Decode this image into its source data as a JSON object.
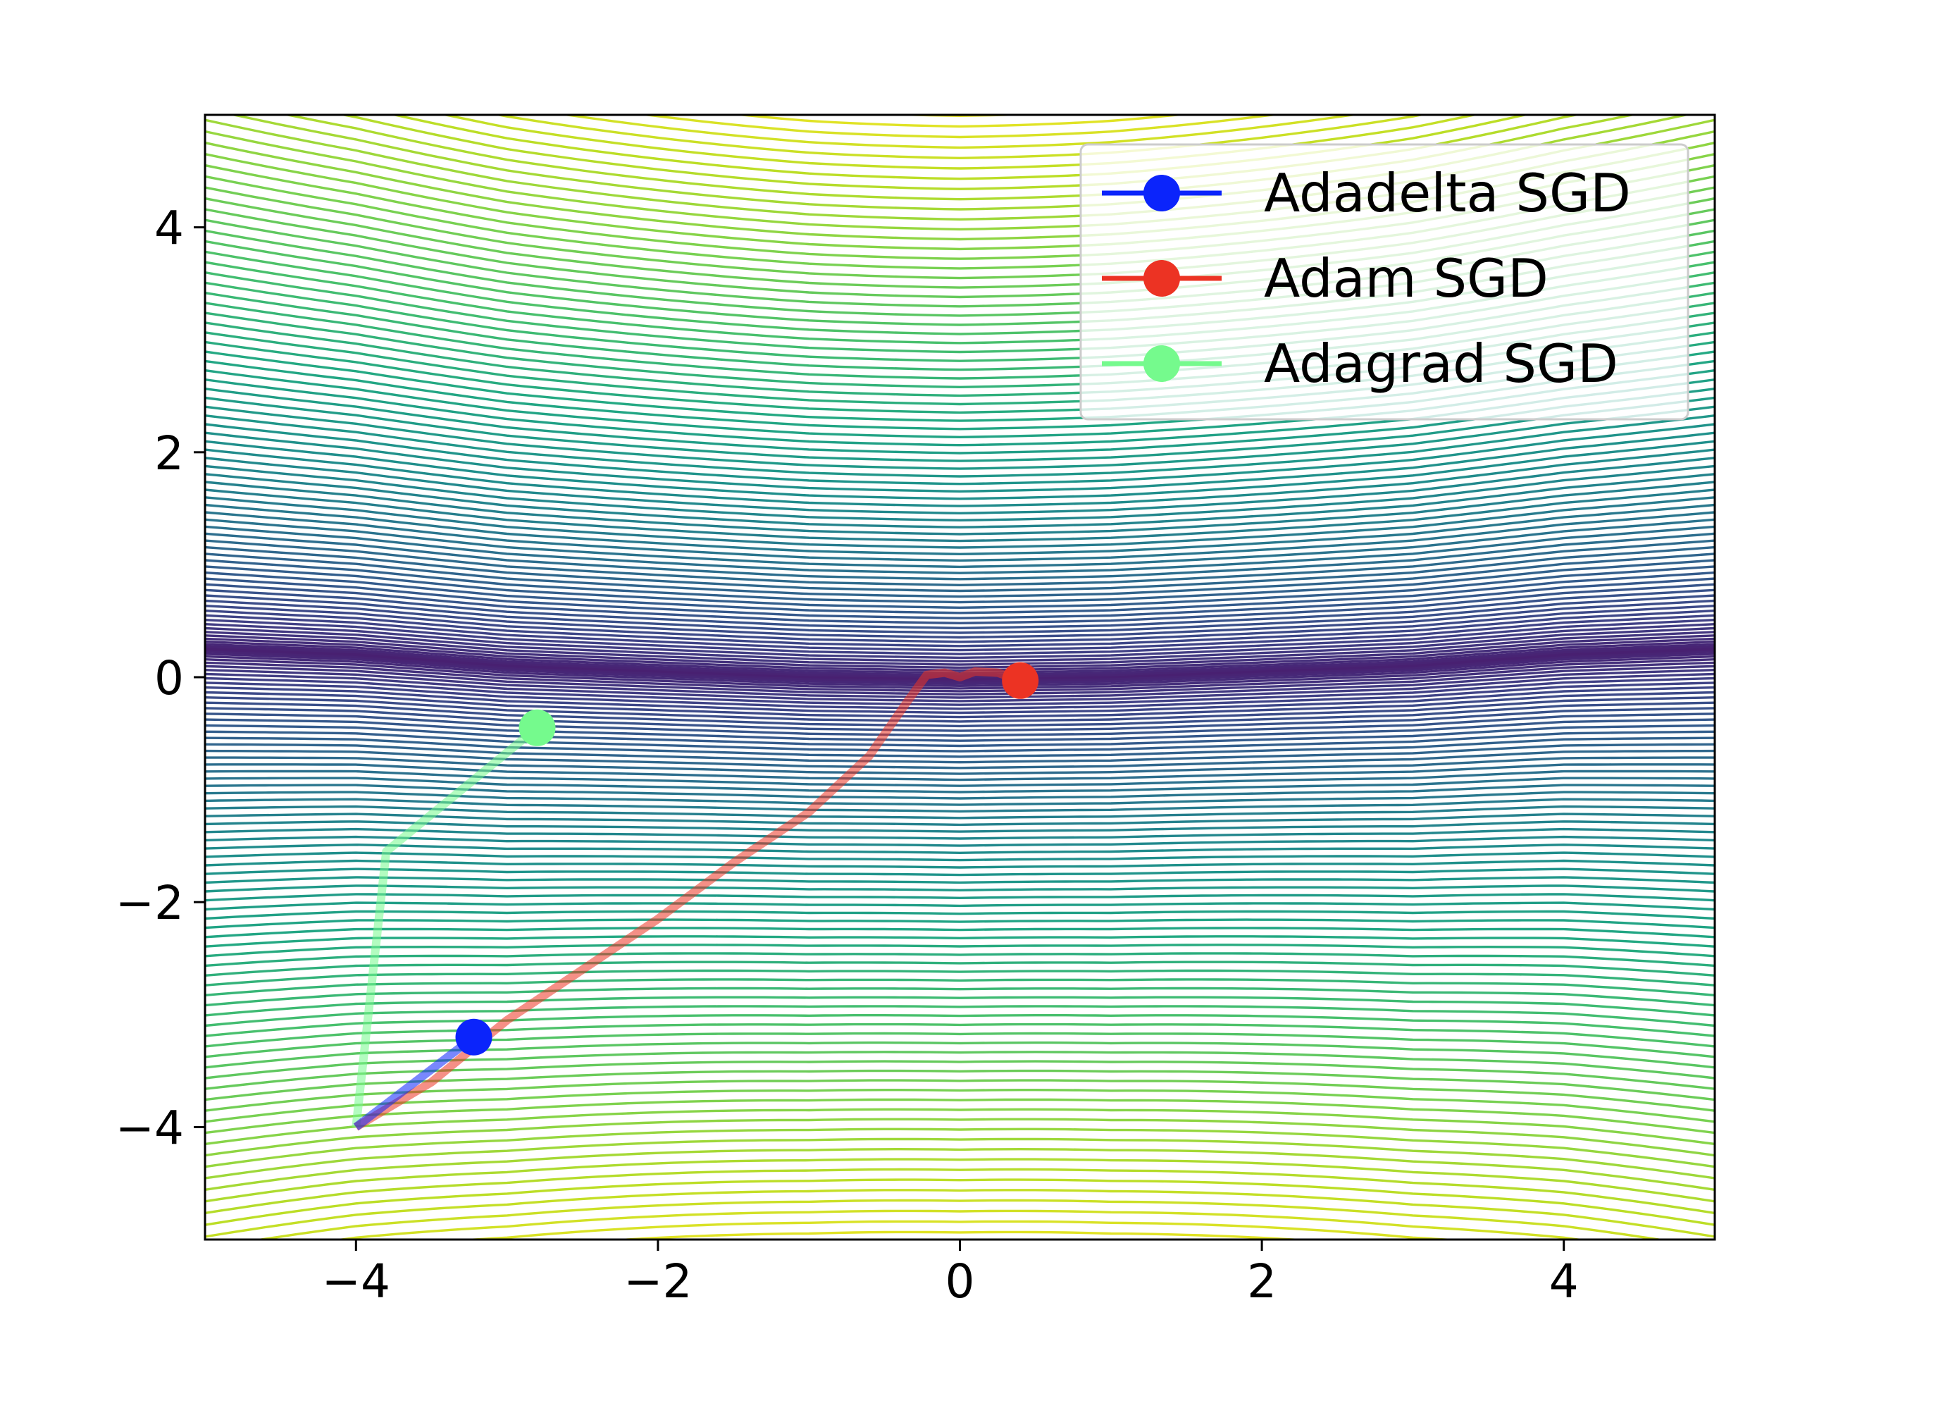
{
  "chart_data": {
    "type": "contour",
    "title": "",
    "xlabel": "",
    "ylabel": "",
    "xlim": [
      -5,
      5
    ],
    "ylim": [
      -5,
      5
    ],
    "xticks": [
      -4,
      -2,
      0,
      2,
      4
    ],
    "yticks": [
      -4,
      -2,
      0,
      2,
      4
    ],
    "xtick_labels": [
      "−4",
      "−2",
      "0",
      "2",
      "4"
    ],
    "ytick_labels": [
      "−4",
      "−2",
      "0",
      "2",
      "4"
    ],
    "grid": false,
    "legend_position": "upper right",
    "colormap": "viridis",
    "contour": {
      "valley_center_y": [
        [
          -5,
          0.25
        ],
        [
          -4,
          0.2
        ],
        [
          -3,
          0.1
        ],
        [
          -2,
          0.05
        ],
        [
          -1,
          0.0
        ],
        [
          0,
          -0.02
        ],
        [
          1,
          0.0
        ],
        [
          2,
          0.05
        ],
        [
          3,
          0.1
        ],
        [
          4,
          0.2
        ],
        [
          5,
          0.25
        ]
      ],
      "max_abs_y": 5.3,
      "levels": 82
    },
    "series": [
      {
        "name": "Adadelta SGD",
        "color": "#0b24fb",
        "path": [
          [
            -4.0,
            -4.0
          ],
          [
            -3.22,
            -3.2
          ]
        ],
        "end": [
          -3.22,
          -3.2
        ]
      },
      {
        "name": "Adam SGD",
        "color": "#ec3323",
        "path": [
          [
            -4.0,
            -4.0
          ],
          [
            -3.5,
            -3.6
          ],
          [
            -3.0,
            -3.05
          ],
          [
            -2.5,
            -2.6
          ],
          [
            -2.0,
            -2.15
          ],
          [
            -1.5,
            -1.65
          ],
          [
            -1.0,
            -1.2
          ],
          [
            -0.6,
            -0.7
          ],
          [
            -0.35,
            -0.22
          ],
          [
            -0.22,
            0.02
          ],
          [
            -0.1,
            0.04
          ],
          [
            0.0,
            0.0
          ],
          [
            0.1,
            0.05
          ],
          [
            0.25,
            0.04
          ],
          [
            0.4,
            -0.03
          ]
        ],
        "end": [
          0.4,
          -0.03
        ]
      },
      {
        "name": "Adagrad SGD",
        "color": "#75fa8d",
        "path": [
          [
            -4.0,
            -4.0
          ],
          [
            -3.8,
            -1.55
          ],
          [
            -2.8,
            -0.45
          ]
        ],
        "end": [
          -2.8,
          -0.45
        ]
      }
    ]
  }
}
